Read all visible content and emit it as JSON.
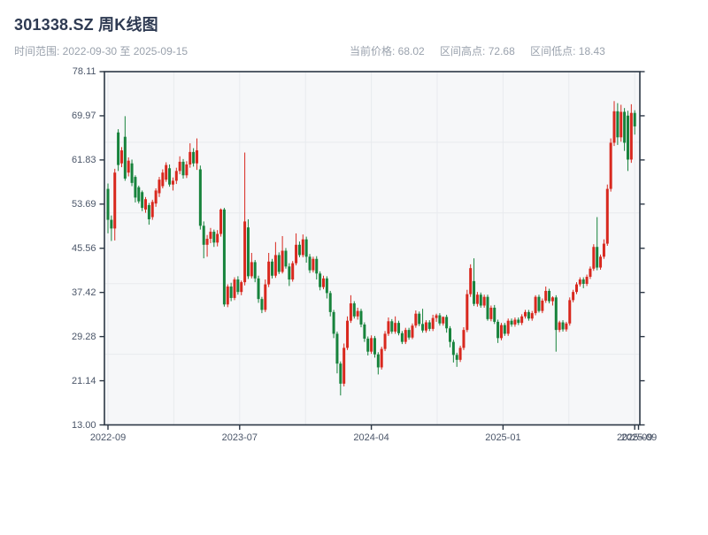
{
  "header": {
    "title": "301338.SZ 周K线图",
    "subtitle": "时间范围: 2022-09-30 至 2025-09-15",
    "stats": [
      {
        "label": "当前价格: ",
        "value": "68.02"
      },
      {
        "label": "区间高点: ",
        "value": "72.68"
      },
      {
        "label": "区间低点: ",
        "value": "18.43"
      }
    ]
  },
  "chart_data": {
    "type": "candlestick",
    "title": "301338.SZ 周K线图",
    "symbol": "301338.SZ",
    "interval": "周K",
    "range_start": "2022-09-30",
    "range_end": "2025-09-15",
    "current_price": 68.02,
    "range_high": 72.68,
    "range_low": 18.43,
    "ylim": [
      13.0,
      78.11
    ],
    "y_tick_labels": [
      "78.11",
      "69.97",
      "61.83",
      "53.69",
      "45.56",
      "37.42",
      "29.28",
      "21.14",
      "13.00"
    ],
    "x_tick_labels": [
      "2022-09",
      "2023-07",
      "2024-04",
      "2025-01",
      "2025-09"
    ],
    "x_end_overlap_label": "2025-09",
    "grid": {
      "h_divisions": 5,
      "v_divisions": 8
    },
    "legend_position": "none",
    "colors": {
      "up": "#d8281e",
      "down": "#17833c",
      "plot_bg": "#f6f7f9",
      "gridline": "#e8eaee",
      "spine": "#2c3745",
      "tick_label": "#4a5568"
    },
    "candles": [
      [
        56.5,
        57.5,
        48.3,
        50.8
      ],
      [
        50.8,
        51.6,
        46.9,
        49.2
      ],
      [
        49.2,
        60.2,
        47.0,
        59.5
      ],
      [
        66.9,
        67.5,
        59.8,
        60.9
      ],
      [
        61.2,
        64.2,
        60.5,
        63.6
      ],
      [
        66.1,
        69.9,
        58.0,
        58.4
      ],
      [
        59.5,
        62.3,
        58.8,
        61.7
      ],
      [
        61.2,
        61.9,
        57.0,
        57.6
      ],
      [
        58.7,
        59.0,
        54.0,
        54.9
      ],
      [
        56.8,
        57.1,
        53.8,
        54.2
      ],
      [
        55.9,
        56.2,
        52.4,
        53.0
      ],
      [
        52.7,
        55.0,
        52.1,
        54.6
      ],
      [
        53.5,
        53.9,
        49.9,
        50.9
      ],
      [
        51.3,
        54.5,
        50.8,
        54.1
      ],
      [
        53.8,
        56.6,
        53.2,
        56.2
      ],
      [
        55.7,
        58.7,
        55.0,
        58.2
      ],
      [
        57.0,
        60.1,
        56.6,
        59.5
      ],
      [
        58.2,
        61.4,
        57.8,
        60.9
      ],
      [
        60.3,
        61.0,
        56.9,
        57.3
      ],
      [
        57.3,
        58.6,
        56.2,
        58.0
      ],
      [
        58.0,
        60.4,
        57.4,
        59.8
      ],
      [
        59.8,
        62.5,
        59.2,
        61.5
      ],
      [
        61.5,
        62.0,
        58.4,
        59.0
      ],
      [
        59.0,
        61.6,
        58.5,
        61.0
      ],
      [
        61.0,
        64.9,
        60.4,
        63.3
      ],
      [
        63.3,
        64.0,
        60.6,
        61.2
      ],
      [
        61.2,
        65.8,
        60.0,
        63.6
      ],
      [
        60.1,
        60.8,
        49.0,
        49.7
      ],
      [
        49.7,
        50.5,
        43.7,
        46.2
      ],
      [
        46.2,
        48.0,
        44.0,
        47.3
      ],
      [
        47.3,
        49.3,
        46.5,
        48.6
      ],
      [
        48.6,
        49.0,
        45.8,
        46.6
      ],
      [
        46.6,
        48.9,
        45.9,
        48.2
      ],
      [
        48.2,
        52.9,
        47.7,
        52.7
      ],
      [
        52.7,
        53.0,
        34.8,
        35.2
      ],
      [
        35.2,
        38.9,
        34.7,
        38.5
      ],
      [
        38.5,
        39.2,
        35.8,
        36.4
      ],
      [
        36.4,
        40.2,
        36.0,
        39.8
      ],
      [
        39.8,
        40.4,
        37.0,
        37.5
      ],
      [
        37.5,
        39.6,
        36.9,
        39.3
      ],
      [
        39.3,
        63.2,
        38.7,
        50.5
      ],
      [
        49.4,
        50.9,
        39.9,
        40.4
      ],
      [
        40.4,
        44.7,
        40.0,
        43.0
      ],
      [
        43.0,
        43.4,
        39.3,
        40.0
      ],
      [
        40.0,
        40.5,
        35.5,
        36.2
      ],
      [
        36.2,
        36.6,
        33.6,
        34.2
      ],
      [
        34.2,
        39.8,
        33.8,
        38.9
      ],
      [
        38.9,
        44.7,
        38.4,
        43.1
      ],
      [
        43.1,
        43.6,
        40.0,
        40.5
      ],
      [
        40.5,
        46.7,
        40.1,
        44.3
      ],
      [
        44.3,
        44.8,
        40.8,
        41.2
      ],
      [
        41.2,
        47.8,
        40.9,
        45.1
      ],
      [
        45.1,
        45.6,
        41.8,
        42.2
      ],
      [
        42.2,
        42.8,
        38.6,
        39.8
      ],
      [
        39.8,
        43.2,
        39.4,
        42.8
      ],
      [
        42.8,
        48.3,
        42.4,
        46.2
      ],
      [
        46.2,
        46.8,
        43.9,
        44.3
      ],
      [
        44.3,
        48.1,
        43.9,
        47.2
      ],
      [
        47.2,
        47.7,
        42.9,
        44.0
      ],
      [
        44.0,
        44.5,
        41.0,
        41.5
      ],
      [
        41.5,
        44.0,
        41.1,
        43.6
      ],
      [
        43.6,
        44.1,
        39.8,
        40.9
      ],
      [
        40.9,
        41.3,
        37.8,
        38.4
      ],
      [
        38.4,
        40.5,
        38.0,
        40.0
      ],
      [
        40.0,
        40.4,
        36.3,
        37.3
      ],
      [
        37.3,
        37.7,
        33.0,
        33.8
      ],
      [
        33.8,
        34.2,
        29.0,
        29.8
      ],
      [
        29.8,
        30.2,
        22.5,
        24.3
      ],
      [
        24.3,
        24.7,
        18.43,
        20.6
      ],
      [
        20.6,
        28.0,
        20.1,
        27.2
      ],
      [
        27.2,
        33.0,
        26.8,
        32.2
      ],
      [
        32.2,
        36.9,
        31.8,
        35.4
      ],
      [
        35.4,
        35.8,
        32.6,
        33.0
      ],
      [
        33.0,
        34.6,
        32.4,
        34.0
      ],
      [
        34.0,
        34.4,
        31.0,
        31.5
      ],
      [
        31.5,
        31.9,
        28.3,
        28.9
      ],
      [
        28.9,
        29.3,
        25.8,
        26.5
      ],
      [
        26.5,
        29.5,
        26.1,
        29.0
      ],
      [
        29.0,
        29.4,
        25.4,
        26.0
      ],
      [
        26.0,
        26.4,
        22.3,
        23.6
      ],
      [
        23.6,
        27.4,
        23.2,
        27.0
      ],
      [
        27.0,
        30.3,
        26.6,
        29.8
      ],
      [
        29.8,
        32.8,
        29.4,
        32.1
      ],
      [
        32.1,
        32.5,
        29.8,
        30.2
      ],
      [
        30.2,
        33.0,
        29.8,
        31.8
      ],
      [
        31.8,
        32.2,
        29.5,
        29.9
      ],
      [
        29.9,
        30.3,
        27.9,
        28.3
      ],
      [
        28.3,
        30.9,
        27.9,
        30.5
      ],
      [
        30.5,
        30.9,
        28.7,
        29.1
      ],
      [
        29.1,
        31.7,
        28.8,
        31.3
      ],
      [
        31.3,
        34.1,
        30.9,
        33.5
      ],
      [
        33.5,
        33.9,
        31.2,
        31.6
      ],
      [
        31.6,
        34.4,
        30.0,
        30.4
      ],
      [
        30.4,
        32.3,
        30.0,
        31.9
      ],
      [
        31.9,
        32.3,
        30.3,
        30.7
      ],
      [
        30.7,
        33.3,
        30.3,
        32.7
      ],
      [
        32.7,
        33.5,
        32.0,
        33.2
      ],
      [
        33.2,
        33.6,
        31.3,
        31.7
      ],
      [
        31.7,
        33.0,
        31.3,
        32.9
      ],
      [
        32.9,
        33.3,
        30.0,
        30.8
      ],
      [
        30.8,
        31.2,
        27.3,
        28.3
      ],
      [
        28.3,
        28.7,
        24.5,
        25.9
      ],
      [
        25.9,
        26.3,
        23.7,
        25.0
      ],
      [
        25.0,
        27.6,
        24.6,
        27.2
      ],
      [
        27.2,
        31.0,
        26.8,
        30.5
      ],
      [
        30.5,
        37.9,
        30.1,
        37.1
      ],
      [
        37.1,
        42.6,
        36.6,
        41.9
      ],
      [
        39.5,
        43.7,
        34.9,
        35.3
      ],
      [
        35.3,
        37.5,
        34.8,
        37.0
      ],
      [
        37.0,
        37.4,
        34.6,
        35.0
      ],
      [
        35.0,
        37.0,
        34.6,
        36.6
      ],
      [
        36.6,
        37.0,
        32.2,
        32.5
      ],
      [
        32.5,
        35.0,
        32.1,
        34.6
      ],
      [
        34.6,
        35.1,
        31.6,
        32.0
      ],
      [
        32.0,
        32.4,
        28.1,
        29.0
      ],
      [
        29.0,
        31.8,
        28.6,
        31.4
      ],
      [
        31.4,
        31.8,
        29.4,
        29.8
      ],
      [
        29.8,
        32.6,
        29.4,
        32.2
      ],
      [
        32.2,
        32.6,
        31.1,
        31.5
      ],
      [
        31.5,
        32.8,
        31.1,
        32.4
      ],
      [
        32.4,
        32.8,
        31.4,
        31.8
      ],
      [
        31.8,
        33.4,
        31.4,
        33.0
      ],
      [
        33.0,
        34.2,
        32.6,
        33.8
      ],
      [
        33.8,
        34.2,
        32.2,
        32.6
      ],
      [
        32.6,
        34.0,
        32.2,
        33.6
      ],
      [
        33.6,
        36.9,
        33.2,
        36.6
      ],
      [
        36.6,
        37.0,
        33.7,
        34.0
      ],
      [
        34.0,
        36.3,
        33.6,
        35.9
      ],
      [
        35.9,
        38.5,
        35.5,
        37.7
      ],
      [
        37.7,
        38.1,
        35.4,
        35.8
      ],
      [
        35.8,
        36.7,
        35.0,
        36.5
      ],
      [
        36.5,
        36.9,
        26.5,
        30.5
      ],
      [
        30.5,
        32.2,
        30.1,
        31.9
      ],
      [
        31.9,
        32.3,
        30.2,
        30.6
      ],
      [
        30.6,
        32.0,
        30.2,
        31.7
      ],
      [
        31.7,
        36.5,
        31.3,
        36.0
      ],
      [
        36.0,
        37.9,
        35.6,
        37.5
      ],
      [
        37.5,
        39.3,
        37.1,
        38.9
      ],
      [
        38.9,
        40.2,
        38.5,
        39.8
      ],
      [
        39.8,
        40.2,
        38.2,
        39.0
      ],
      [
        39.0,
        40.7,
        38.6,
        40.3
      ],
      [
        40.3,
        42.2,
        39.9,
        41.8
      ],
      [
        41.8,
        46.3,
        41.4,
        45.8
      ],
      [
        45.8,
        51.3,
        41.5,
        42.0
      ],
      [
        42.0,
        44.4,
        41.6,
        44.0
      ],
      [
        44.0,
        47.2,
        43.6,
        46.4
      ],
      [
        46.4,
        57.3,
        46.0,
        56.5
      ],
      [
        56.5,
        65.8,
        56.0,
        65.0
      ],
      [
        65.0,
        72.68,
        64.4,
        70.8
      ],
      [
        70.8,
        72.3,
        64.6,
        66.0
      ],
      [
        66.0,
        72.0,
        65.2,
        70.7
      ],
      [
        70.7,
        71.4,
        63.5,
        65.0
      ],
      [
        70.0,
        70.9,
        59.8,
        61.9
      ],
      [
        61.9,
        72.1,
        61.3,
        70.5
      ],
      [
        70.5,
        71.0,
        66.5,
        68.02
      ]
    ]
  }
}
